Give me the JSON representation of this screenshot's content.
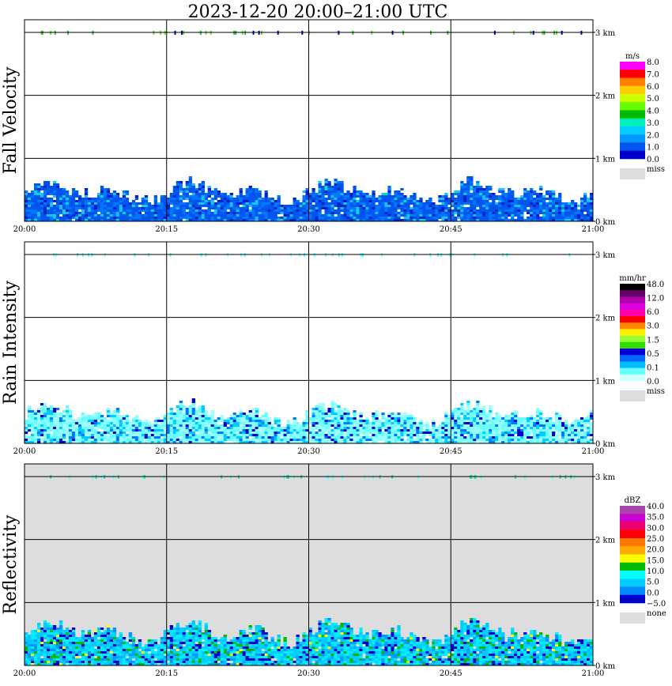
{
  "title": "2023-12-20   20:00–21:00 UTC",
  "chart_data": [
    {
      "type": "heatmap",
      "name": "Fall Velocity",
      "unit": "m/s",
      "x_ticks": [
        "20:00",
        "20:15",
        "20:30",
        "20:45",
        "21:00"
      ],
      "y_ticks": [
        "0 km",
        "1 km",
        "2 km",
        "3 km"
      ],
      "ylim": [
        0,
        3.2
      ],
      "background": "#ffffff",
      "colorbar": {
        "colors": [
          "#ff00ff",
          "#ff0000",
          "#ff8000",
          "#ffcc00",
          "#ccff00",
          "#66ff00",
          "#00bb00",
          "#00eebb",
          "#00ccff",
          "#0099ff",
          "#0055ee",
          "#0000cc"
        ],
        "labels": [
          "8.0",
          "7.0",
          "6.0",
          "5.0",
          "4.0",
          "3.0",
          "2.0",
          "1.0",
          "0.0"
        ],
        "extra": [
          "miss"
        ],
        "extra_colors": [
          "#dddddd"
        ]
      },
      "field": {
        "palette": [
          "#0055ee",
          "#0077ff",
          "#0022cc",
          "#22bbff",
          "#00ddcc"
        ],
        "weights": [
          0.5,
          0.25,
          0.12,
          0.09,
          0.04
        ],
        "top_km": 0.72
      },
      "band_colors": [
        "#66dd33",
        "#33bb33",
        "#0000aa"
      ]
    },
    {
      "type": "heatmap",
      "name": "Rain Intensity",
      "unit": "mm/hr",
      "x_ticks": [
        "20:00",
        "20:15",
        "20:30",
        "20:45",
        "21:00"
      ],
      "y_ticks": [
        "0 km",
        "1 km",
        "2 km",
        "3 km"
      ],
      "ylim": [
        0,
        3.2
      ],
      "background": "#ffffff",
      "colorbar": {
        "colors": [
          "#000000",
          "#660066",
          "#aa00aa",
          "#dd00dd",
          "#ff00aa",
          "#ff0000",
          "#ff8800",
          "#ffee00",
          "#99ff33",
          "#33dd00",
          "#0000dd",
          "#0066ff",
          "#00bbff",
          "#66ffff",
          "#ccffff"
        ],
        "labels": [
          "48.0",
          "12.0",
          "6.0",
          "3.0",
          "1.5",
          "0.5",
          "0.1",
          "0.0"
        ],
        "extra": [
          "miss"
        ],
        "extra_colors": [
          "#dddddd"
        ]
      },
      "field": {
        "palette": [
          "#99ffff",
          "#66ffff",
          "#00ccff",
          "#0077ff",
          "#0000cc"
        ],
        "weights": [
          0.38,
          0.3,
          0.16,
          0.1,
          0.06
        ],
        "top_km": 0.72
      },
      "band_colors": [
        "#55ffff",
        "#88ffff"
      ]
    },
    {
      "type": "heatmap",
      "name": "Reflectivity",
      "unit": "dBZ",
      "x_ticks": [
        "20:00",
        "20:15",
        "20:30",
        "20:45",
        "21:00"
      ],
      "y_ticks": [
        "0 km",
        "1 km",
        "2 km",
        "3 km"
      ],
      "ylim": [
        0,
        3.2
      ],
      "background": "#dddddd",
      "colorbar": {
        "colors": [
          "#aa44aa",
          "#cc00cc",
          "#ee0066",
          "#ff0000",
          "#ff7700",
          "#ffaa00",
          "#ffff00",
          "#00bb00",
          "#00ffff",
          "#00ccff",
          "#0088ff",
          "#0000cc"
        ],
        "labels": [
          "40.0",
          "35.0",
          "30.0",
          "25.0",
          "20.0",
          "15.0",
          "10.0",
          "5.0",
          "0.0",
          "−5.0"
        ],
        "extra": [
          "none"
        ],
        "extra_colors": [
          "#dddddd"
        ]
      },
      "field": {
        "palette": [
          "#00ccff",
          "#00eeff",
          "#0099ff",
          "#0000cc",
          "#00bb00",
          "#ffff00"
        ],
        "weights": [
          0.36,
          0.28,
          0.14,
          0.12,
          0.08,
          0.02
        ],
        "top_km": 0.8
      },
      "band_colors": [
        "#33ddaa",
        "#55ffff"
      ]
    }
  ]
}
